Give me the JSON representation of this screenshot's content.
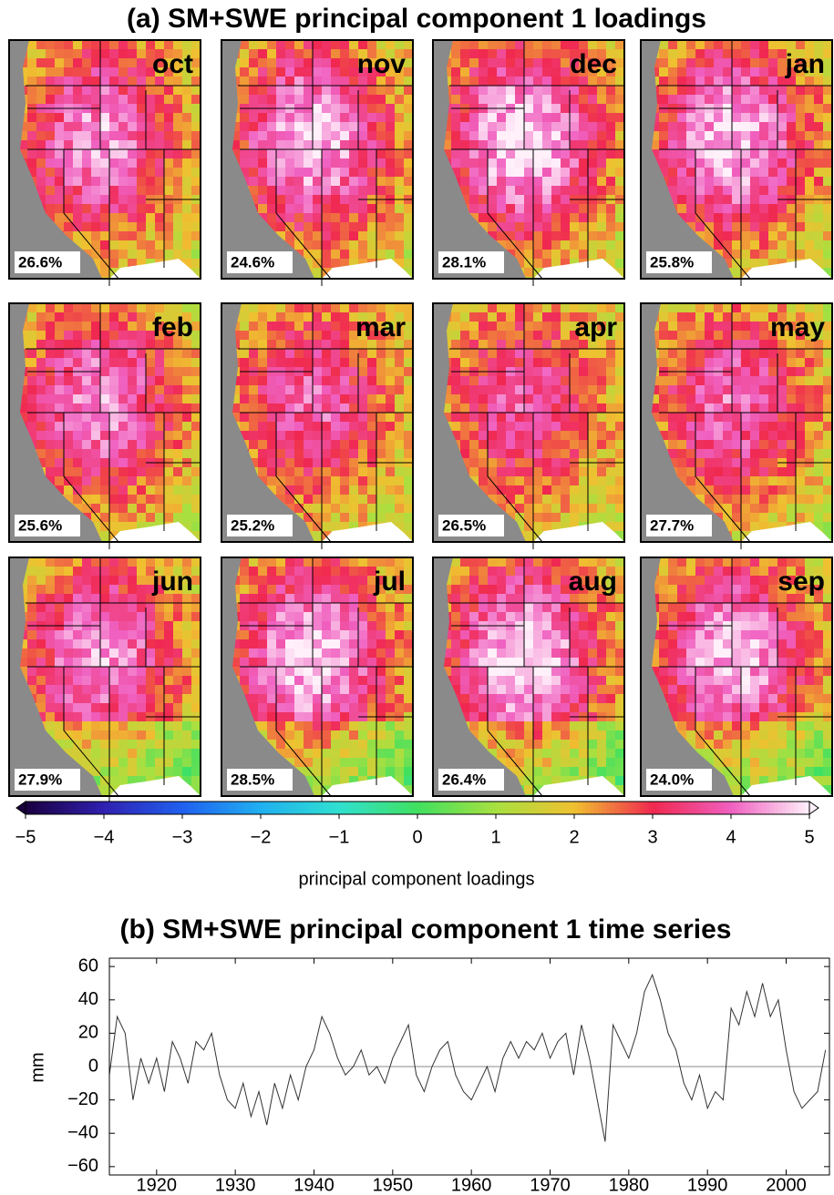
{
  "chart_data": [
    {
      "type": "map-panels",
      "title": "(a) SM+SWE principal component 1 loadings",
      "categories": [
        "oct",
        "nov",
        "dec",
        "jan",
        "feb",
        "mar",
        "apr",
        "may",
        "jun",
        "jul",
        "aug",
        "sep"
      ],
      "variance_labels": [
        "26.6%",
        "24.6%",
        "28.1%",
        "25.8%",
        "25.6%",
        "25.2%",
        "26.5%",
        "27.7%",
        "27.9%",
        "28.5%",
        "26.4%",
        "24.0%"
      ],
      "colorbar": {
        "label": "principal component loadings",
        "lim": [
          -5,
          5
        ],
        "ticks": [
          {
            "value": -5,
            "label": "−5"
          },
          {
            "value": -4,
            "label": "−4"
          },
          {
            "value": -3,
            "label": "−3"
          },
          {
            "value": -2,
            "label": "−2"
          },
          {
            "value": -1,
            "label": "−1"
          },
          0,
          1,
          2,
          3,
          4,
          5
        ],
        "colors": [
          "#1a0040",
          "#3020b0",
          "#2060f0",
          "#20b0f0",
          "#30e0d0",
          "#40e060",
          "#a8e040",
          "#f0c030",
          "#f02850",
          "#f060c0",
          "#fff0fa"
        ]
      }
    },
    {
      "type": "line",
      "title": "(b) SM+SWE principal component 1 time series",
      "y_label": "mm",
      "color": "#333333",
      "x": [
        1914,
        1915,
        1916,
        1917,
        1918,
        1919,
        1920,
        1921,
        1922,
        1923,
        1924,
        1925,
        1926,
        1927,
        1928,
        1929,
        1930,
        1931,
        1932,
        1933,
        1934,
        1935,
        1936,
        1937,
        1938,
        1939,
        1940,
        1941,
        1942,
        1943,
        1944,
        1945,
        1946,
        1947,
        1948,
        1949,
        1950,
        1951,
        1952,
        1953,
        1954,
        1955,
        1956,
        1957,
        1958,
        1959,
        1960,
        1961,
        1962,
        1963,
        1964,
        1965,
        1966,
        1967,
        1968,
        1969,
        1970,
        1971,
        1972,
        1973,
        1974,
        1975,
        1976,
        1977,
        1978,
        1979,
        1980,
        1981,
        1982,
        1983,
        1984,
        1985,
        1986,
        1987,
        1988,
        1989,
        1990,
        1991,
        1992,
        1993,
        1994,
        1995,
        1996,
        1997,
        1998,
        1999,
        2000,
        2001,
        2002,
        2003,
        2004,
        2005
      ],
      "values": [
        -5,
        30,
        20,
        -20,
        5,
        -10,
        5,
        -15,
        15,
        5,
        -10,
        15,
        10,
        20,
        -5,
        -20,
        -25,
        -10,
        -30,
        -15,
        -35,
        -10,
        -25,
        -5,
        -20,
        0,
        10,
        30,
        20,
        5,
        -5,
        0,
        10,
        -5,
        0,
        -10,
        5,
        15,
        25,
        -5,
        -15,
        0,
        10,
        15,
        -5,
        -15,
        -20,
        -10,
        0,
        -15,
        5,
        15,
        5,
        15,
        10,
        20,
        5,
        15,
        20,
        -5,
        25,
        5,
        -20,
        -45,
        25,
        15,
        5,
        20,
        45,
        55,
        40,
        20,
        10,
        -10,
        -20,
        -5,
        -25,
        -15,
        -20,
        35,
        25,
        45,
        30,
        50,
        30,
        40,
        10,
        -15,
        -25,
        -20,
        -15,
        10
      ],
      "xlim": [
        1914,
        2005.5
      ],
      "ylim": [
        -65,
        65
      ],
      "xticks": [
        1920,
        1930,
        1940,
        1950,
        1960,
        1970,
        1980,
        1990,
        2000
      ],
      "yticks": [
        {
          "value": -60,
          "label": "−60"
        },
        {
          "value": -40,
          "label": "−40"
        },
        {
          "value": -20,
          "label": "−20"
        },
        0,
        20,
        40,
        60
      ]
    }
  ]
}
